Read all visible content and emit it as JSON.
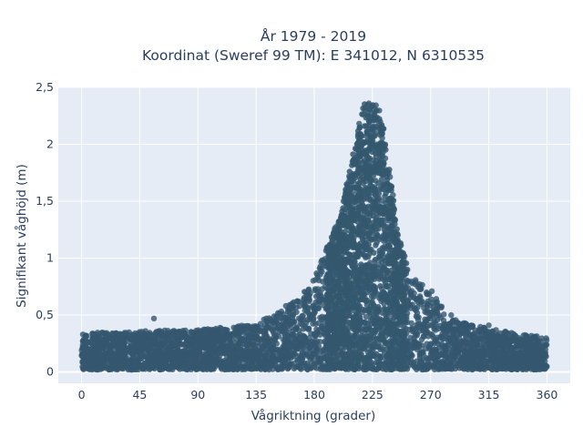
{
  "chart_data": {
    "type": "scatter",
    "title_lines": [
      "År 1979 - 2019",
      "Koordinat (Sweref 99 TM): E 341012, N 6310535"
    ],
    "xlabel": "Vågriktning (grader)",
    "ylabel": "Signifikant våghöjd (m)",
    "xlim": [
      -18,
      378
    ],
    "ylim": [
      -0.1,
      2.5
    ],
    "xticks": [
      0,
      45,
      90,
      135,
      180,
      225,
      270,
      315,
      360
    ],
    "xtick_labels": [
      "0",
      "45",
      "90",
      "135",
      "180",
      "225",
      "270",
      "315",
      "360"
    ],
    "yticks": [
      0,
      0.5,
      1,
      1.5,
      2,
      2.5
    ],
    "ytick_labels": [
      "0",
      "0,5",
      "1",
      "1,5",
      "2",
      "2,5"
    ],
    "grid": true,
    "marker_color": "#34586f",
    "plot_bgcolor": "#e5ecf6",
    "distribution": [
      {
        "x": 0,
        "ymin": 0.0,
        "ymax": 0.34
      },
      {
        "x": 45,
        "ymin": 0.0,
        "ymax": 0.36
      },
      {
        "x": 90,
        "ymin": 0.0,
        "ymax": 0.37
      },
      {
        "x": 135,
        "ymin": 0.0,
        "ymax": 0.42
      },
      {
        "x": 160,
        "ymin": 0.0,
        "ymax": 0.58
      },
      {
        "x": 180,
        "ymin": 0.0,
        "ymax": 0.82
      },
      {
        "x": 200,
        "ymin": 0.0,
        "ymax": 1.38
      },
      {
        "x": 212,
        "ymin": 0.0,
        "ymax": 2.05
      },
      {
        "x": 218,
        "ymin": 0.0,
        "ymax": 2.35
      },
      {
        "x": 225,
        "ymin": 0.0,
        "ymax": 2.39
      },
      {
        "x": 232,
        "ymin": 0.0,
        "ymax": 2.3
      },
      {
        "x": 238,
        "ymin": 0.0,
        "ymax": 1.8
      },
      {
        "x": 245,
        "ymin": 0.0,
        "ymax": 1.2
      },
      {
        "x": 255,
        "ymin": 0.0,
        "ymax": 0.85
      },
      {
        "x": 270,
        "ymin": 0.0,
        "ymax": 0.7
      },
      {
        "x": 290,
        "ymin": 0.0,
        "ymax": 0.45
      },
      {
        "x": 315,
        "ymin": 0.0,
        "ymax": 0.38
      },
      {
        "x": 360,
        "ymin": 0.0,
        "ymax": 0.3
      }
    ],
    "outliers": [
      {
        "x": 56,
        "y": 0.47
      },
      {
        "x": 78,
        "y": 0.35
      },
      {
        "x": 107,
        "y": 0.33
      },
      {
        "x": 141,
        "y": 0.46
      },
      {
        "x": 158,
        "y": 0.58
      },
      {
        "x": 176,
        "y": 0.62
      },
      {
        "x": 271,
        "y": 0.71
      },
      {
        "x": 287,
        "y": 0.44
      },
      {
        "x": 302,
        "y": 0.3
      },
      {
        "x": 315,
        "y": 0.41
      },
      {
        "x": 1,
        "y": 0.33
      }
    ]
  }
}
